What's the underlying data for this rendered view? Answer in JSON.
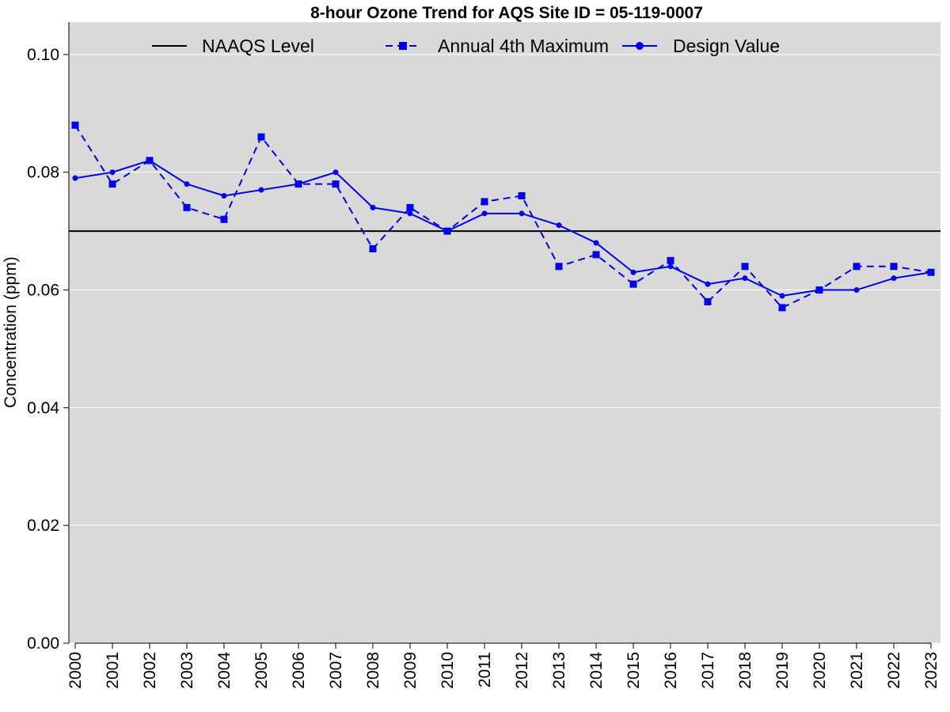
{
  "chart_data": {
    "type": "line",
    "title": "8-hour Ozone Trend for AQS Site ID = 05-119-0007",
    "xlabel": "",
    "ylabel": "Concentration (ppm)",
    "ylim": [
      0,
      0.1055
    ],
    "y_ticks": [
      "0.00",
      "0.02",
      "0.04",
      "0.06",
      "0.08",
      "0.10"
    ],
    "y_tick_values": [
      0,
      0.02,
      0.04,
      0.06,
      0.08,
      0.1
    ],
    "grid": "horizontal",
    "legend_position": "top",
    "categories": [
      "2000",
      "2001",
      "2002",
      "2003",
      "2004",
      "2005",
      "2006",
      "2007",
      "2008",
      "2009",
      "2010",
      "2011",
      "2012",
      "2013",
      "2014",
      "2015",
      "2016",
      "2017",
      "2018",
      "2019",
      "2020",
      "2021",
      "2022",
      "2023"
    ],
    "naaqs_level": 0.07,
    "series": [
      {
        "name": "NAAQS Level",
        "color": "#000000",
        "style": "solid",
        "marker": "none"
      },
      {
        "name": "Annual 4th Maximum",
        "color": "#0000ee",
        "style": "dashed",
        "marker": "square",
        "values": [
          0.088,
          0.078,
          0.082,
          0.074,
          0.072,
          0.086,
          0.078,
          0.078,
          0.067,
          0.074,
          0.07,
          0.075,
          0.076,
          0.064,
          0.066,
          0.061,
          0.065,
          0.058,
          0.064,
          0.057,
          0.06,
          0.064,
          0.064,
          0.063
        ]
      },
      {
        "name": "Design Value",
        "color": "#0000ee",
        "style": "solid",
        "marker": "circle",
        "values": [
          0.079,
          0.08,
          0.082,
          0.078,
          0.076,
          0.077,
          0.078,
          0.08,
          0.074,
          0.073,
          0.07,
          0.073,
          0.073,
          0.071,
          0.068,
          0.063,
          0.064,
          0.061,
          0.062,
          0.059,
          0.06,
          0.06,
          0.062,
          0.063
        ]
      }
    ]
  },
  "colors": {
    "plot_background": "#d9d9d9",
    "grid": "#ffffff",
    "series_blue": "#0000ee"
  }
}
